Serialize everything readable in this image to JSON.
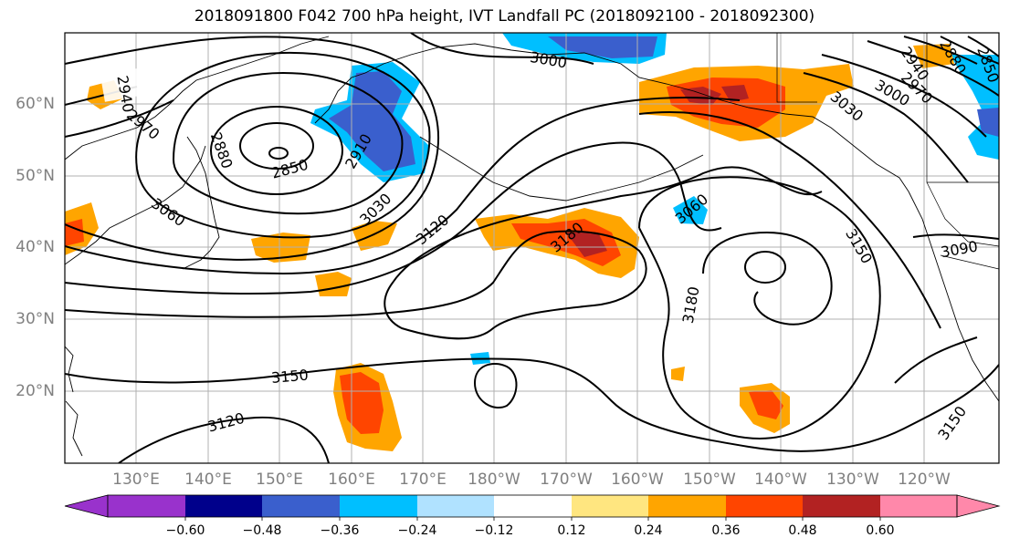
{
  "title": "2018091800 F042 700 hPa height, IVT Landfall PC (2018092100 - 2018092300)",
  "lat_labels": [
    "60°N",
    "50°N",
    "40°N",
    "30°N",
    "20°N"
  ],
  "lon_labels": [
    "130°E",
    "140°E",
    "150°E",
    "160°E",
    "170°E",
    "180°W",
    "170°W",
    "160°W",
    "150°W",
    "140°W",
    "130°W",
    "120°W"
  ],
  "contour_labels": [
    "2940",
    "2970",
    "2880",
    "2850",
    "2910",
    "3030",
    "3060",
    "3120",
    "3180",
    "3000",
    "3030",
    "2940",
    "2970",
    "3000",
    "2880",
    "2850",
    "3060",
    "3150",
    "3090",
    "3180",
    "3150",
    "3120",
    "3150"
  ],
  "colorbar": {
    "ticks": [
      "−0.60",
      "−0.48",
      "−0.36",
      "−0.24",
      "−0.12",
      "0.12",
      "0.24",
      "0.36",
      "0.48",
      "0.60"
    ],
    "colors": [
      "#9932cc",
      "#00008b",
      "#3a5fcd",
      "#00bfff",
      "#b0e2ff",
      "#ffffff",
      "#ffe680",
      "#ffa500",
      "#ff4500",
      "#b22222",
      "#ff88aa"
    ]
  }
}
